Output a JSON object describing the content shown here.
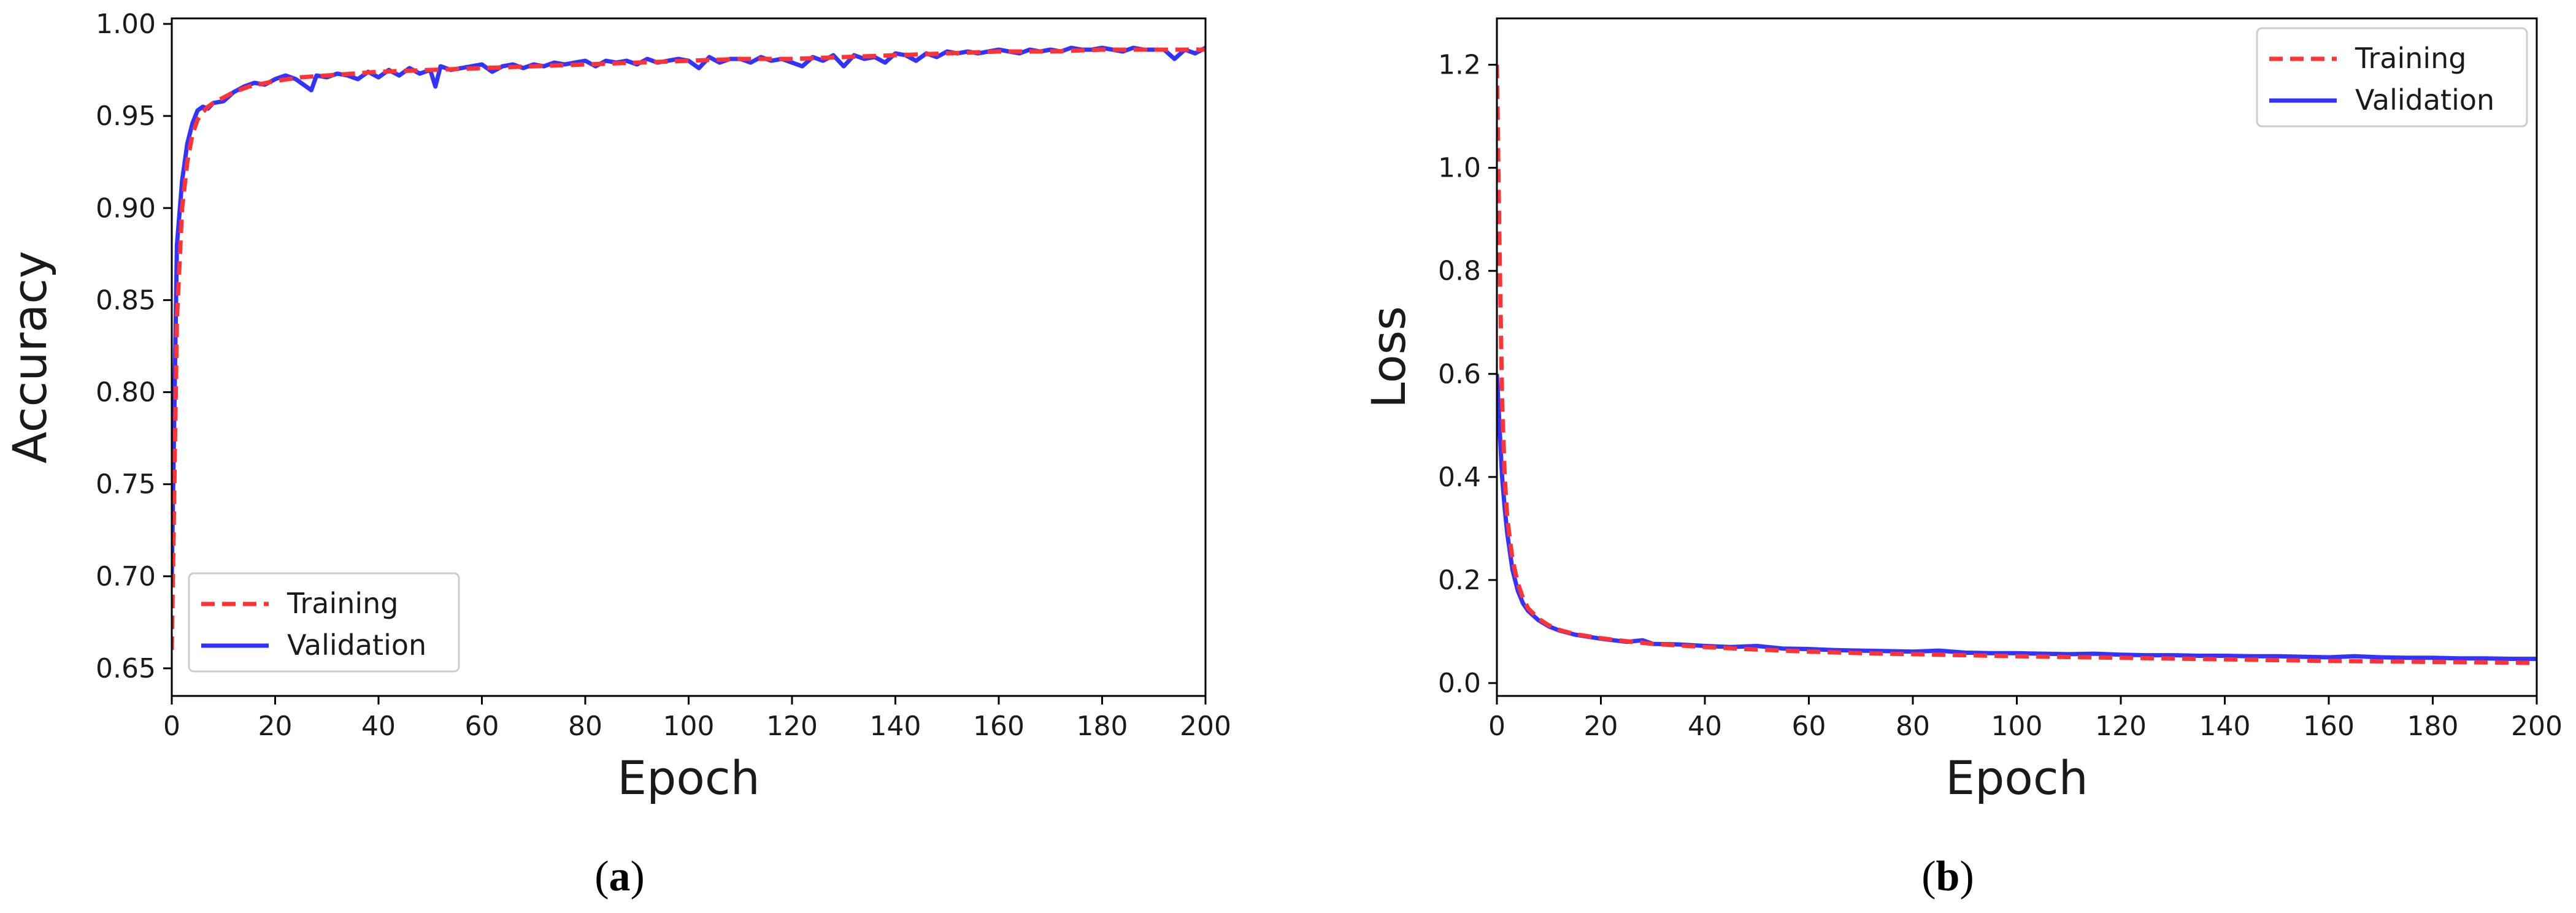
{
  "chart_data": [
    {
      "type": "line",
      "panel_label": "a",
      "xlabel": "Epoch",
      "ylabel": "Accuracy",
      "xlim": [
        0,
        200
      ],
      "ylim": [
        0.635,
        1.003
      ],
      "xticks": [
        0,
        20,
        40,
        60,
        80,
        100,
        120,
        140,
        160,
        180,
        200
      ],
      "yticks": [
        0.65,
        0.7,
        0.75,
        0.8,
        0.85,
        0.9,
        0.95,
        1.0
      ],
      "ytick_labels": [
        "0.65",
        "0.70",
        "0.75",
        "0.80",
        "0.85",
        "0.90",
        "0.95",
        "1.00"
      ],
      "grid": false,
      "legend": {
        "position": "lower-left",
        "entries": [
          "Training",
          "Validation"
        ]
      },
      "series": [
        {
          "name": "Training",
          "style": "dashed",
          "color": "#ff3333",
          "x": [
            0,
            1,
            2,
            3,
            4,
            5,
            6,
            7,
            8,
            10,
            12,
            15,
            20,
            25,
            30,
            40,
            50,
            60,
            70,
            80,
            90,
            100,
            110,
            120,
            130,
            140,
            150,
            160,
            170,
            180,
            190,
            200
          ],
          "y": [
            0.66,
            0.84,
            0.9,
            0.925,
            0.94,
            0.948,
            0.952,
            0.955,
            0.957,
            0.96,
            0.963,
            0.966,
            0.969,
            0.971,
            0.972,
            0.974,
            0.975,
            0.976,
            0.977,
            0.978,
            0.979,
            0.98,
            0.981,
            0.981,
            0.982,
            0.983,
            0.984,
            0.985,
            0.985,
            0.986,
            0.986,
            0.986
          ]
        },
        {
          "name": "Validation",
          "style": "solid",
          "color": "#3333ff",
          "x": [
            0,
            1,
            2,
            3,
            4,
            5,
            6,
            7,
            8,
            10,
            12,
            14,
            16,
            18,
            20,
            22,
            24,
            26,
            27,
            28,
            30,
            32,
            34,
            36,
            38,
            40,
            42,
            44,
            46,
            48,
            50,
            51,
            52,
            54,
            56,
            58,
            60,
            62,
            64,
            66,
            68,
            70,
            72,
            74,
            76,
            78,
            80,
            82,
            84,
            86,
            88,
            90,
            92,
            94,
            96,
            98,
            100,
            102,
            104,
            106,
            108,
            110,
            112,
            114,
            116,
            118,
            120,
            122,
            124,
            126,
            128,
            130,
            132,
            134,
            136,
            138,
            140,
            142,
            144,
            146,
            148,
            150,
            152,
            154,
            156,
            158,
            160,
            162,
            164,
            166,
            168,
            170,
            172,
            174,
            176,
            178,
            180,
            182,
            184,
            186,
            188,
            190,
            192,
            194,
            196,
            198,
            200
          ],
          "y": [
            0.7,
            0.88,
            0.915,
            0.935,
            0.946,
            0.953,
            0.955,
            0.954,
            0.957,
            0.958,
            0.963,
            0.966,
            0.968,
            0.967,
            0.97,
            0.972,
            0.97,
            0.966,
            0.964,
            0.972,
            0.971,
            0.973,
            0.972,
            0.97,
            0.974,
            0.971,
            0.975,
            0.972,
            0.976,
            0.973,
            0.975,
            0.966,
            0.977,
            0.975,
            0.976,
            0.977,
            0.978,
            0.974,
            0.977,
            0.978,
            0.976,
            0.978,
            0.977,
            0.979,
            0.978,
            0.979,
            0.98,
            0.977,
            0.98,
            0.979,
            0.98,
            0.978,
            0.981,
            0.979,
            0.98,
            0.981,
            0.98,
            0.976,
            0.982,
            0.979,
            0.981,
            0.981,
            0.979,
            0.982,
            0.98,
            0.981,
            0.979,
            0.977,
            0.982,
            0.98,
            0.983,
            0.977,
            0.983,
            0.981,
            0.982,
            0.979,
            0.984,
            0.983,
            0.98,
            0.984,
            0.982,
            0.985,
            0.984,
            0.985,
            0.984,
            0.985,
            0.986,
            0.985,
            0.984,
            0.986,
            0.985,
            0.986,
            0.985,
            0.987,
            0.986,
            0.986,
            0.987,
            0.986,
            0.985,
            0.987,
            0.986,
            0.986,
            0.986,
            0.981,
            0.986,
            0.984,
            0.987
          ]
        }
      ]
    },
    {
      "type": "line",
      "panel_label": "b",
      "xlabel": "Epoch",
      "ylabel": "Loss",
      "xlim": [
        0,
        200
      ],
      "ylim": [
        -0.025,
        1.29
      ],
      "xticks": [
        0,
        20,
        40,
        60,
        80,
        100,
        120,
        140,
        160,
        180,
        200
      ],
      "yticks": [
        0.0,
        0.2,
        0.4,
        0.6,
        0.8,
        1.0,
        1.2
      ],
      "ytick_labels": [
        "0.0",
        "0.2",
        "0.4",
        "0.6",
        "0.8",
        "1.0",
        "1.2"
      ],
      "grid": false,
      "legend": {
        "position": "top-right",
        "entries": [
          "Training",
          "Validation"
        ]
      },
      "series": [
        {
          "name": "Training",
          "style": "dashed",
          "color": "#ff3333",
          "x": [
            0,
            0.5,
            1,
            1.5,
            2,
            3,
            4,
            5,
            6,
            8,
            10,
            12,
            15,
            20,
            25,
            30,
            40,
            50,
            60,
            70,
            80,
            90,
            100,
            120,
            140,
            160,
            180,
            200
          ],
          "y": [
            1.2,
            0.85,
            0.55,
            0.4,
            0.32,
            0.24,
            0.195,
            0.165,
            0.145,
            0.125,
            0.112,
            0.103,
            0.095,
            0.087,
            0.081,
            0.076,
            0.07,
            0.065,
            0.061,
            0.058,
            0.056,
            0.054,
            0.052,
            0.049,
            0.046,
            0.043,
            0.041,
            0.039
          ]
        },
        {
          "name": "Validation",
          "style": "solid",
          "color": "#3333ff",
          "x": [
            0,
            0.5,
            1,
            1.5,
            2,
            3,
            4,
            5,
            6,
            8,
            10,
            12,
            15,
            20,
            25,
            28,
            30,
            35,
            40,
            45,
            50,
            55,
            60,
            65,
            70,
            75,
            80,
            85,
            90,
            95,
            100,
            105,
            110,
            115,
            120,
            125,
            130,
            135,
            140,
            145,
            150,
            155,
            160,
            165,
            170,
            175,
            180,
            185,
            190,
            195,
            200
          ],
          "y": [
            0.6,
            0.5,
            0.4,
            0.34,
            0.29,
            0.22,
            0.18,
            0.155,
            0.14,
            0.122,
            0.11,
            0.102,
            0.094,
            0.086,
            0.08,
            0.083,
            0.076,
            0.075,
            0.072,
            0.07,
            0.072,
            0.067,
            0.066,
            0.064,
            0.063,
            0.062,
            0.061,
            0.063,
            0.059,
            0.058,
            0.058,
            0.057,
            0.056,
            0.057,
            0.055,
            0.054,
            0.054,
            0.053,
            0.053,
            0.052,
            0.052,
            0.051,
            0.05,
            0.052,
            0.05,
            0.049,
            0.049,
            0.048,
            0.048,
            0.047,
            0.047
          ]
        }
      ]
    }
  ]
}
